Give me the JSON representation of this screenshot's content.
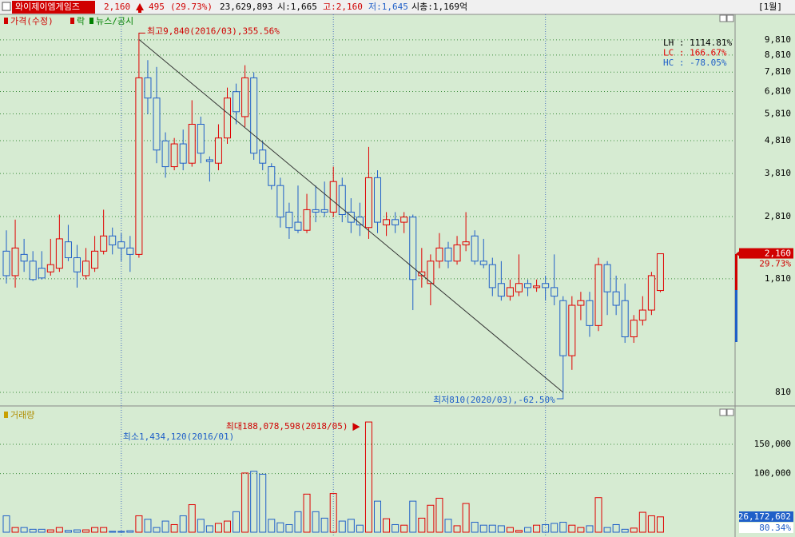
{
  "header": {
    "name": "와이제이엠게임즈",
    "price": "2,160",
    "change": "495",
    "change_rate": "(29.73%)",
    "volume": "23,629,893",
    "open": "시:1,665",
    "high": "고:2,160",
    "low": "저:1,645",
    "cap": "시총:1,169억",
    "period": "[1월]"
  },
  "chart_data": [
    {
      "type": "candlestick",
      "title": "가격(수정)",
      "labels": [
        "락",
        "뉴스/공시"
      ],
      "open": [
        2200,
        1850,
        2150,
        2050,
        1950,
        1900,
        1950,
        2350,
        2100,
        1850,
        1950,
        2200,
        2450,
        2350,
        2250,
        2150,
        7500,
        6500,
        4800,
        4000,
        4700,
        4100,
        5400,
        4200,
        4100,
        4900,
        6800,
        5700,
        7500,
        4500,
        4000,
        3500,
        2900,
        2700,
        2550,
        2950,
        2950,
        2900,
        3500,
        2900,
        2800,
        2600,
        3700,
        2650,
        2750,
        2700,
        2800,
        1850,
        1750,
        2050,
        2250,
        2050,
        2300,
        2450,
        2050,
        2000,
        1750,
        1600,
        1650,
        1750,
        1700,
        1750,
        1700,
        1550,
        1050,
        1500,
        1550,
        1300,
        2000,
        1650,
        1550,
        1200,
        1350,
        1450,
        1665
      ],
      "high": [
        2550,
        2750,
        2400,
        2200,
        2200,
        2400,
        2850,
        2650,
        2300,
        2250,
        2450,
        2950,
        2600,
        2500,
        2450,
        9840,
        8500,
        8100,
        5100,
        4900,
        5200,
        6400,
        5700,
        4300,
        5400,
        7000,
        7200,
        8200,
        7800,
        4800,
        4100,
        3700,
        3100,
        3500,
        3300,
        3500,
        3600,
        4000,
        3700,
        3200,
        3100,
        4600,
        3900,
        2900,
        2900,
        2900,
        2850,
        2250,
        2150,
        2500,
        2350,
        2450,
        2900,
        2550,
        2400,
        2100,
        2050,
        1800,
        2150,
        1800,
        1800,
        1850,
        2150,
        1600,
        1600,
        1650,
        1650,
        2100,
        2050,
        1850,
        1750,
        1400,
        1600,
        1900,
        2160
      ],
      "low": [
        1750,
        1700,
        1900,
        1780,
        1800,
        1850,
        1900,
        2050,
        1700,
        1800,
        1900,
        2150,
        2150,
        2050,
        1900,
        2100,
        5800,
        4100,
        3700,
        3900,
        3900,
        4000,
        4100,
        3600,
        3900,
        4700,
        5400,
        5300,
        4200,
        3900,
        3400,
        2600,
        2400,
        2500,
        2500,
        2700,
        2800,
        2800,
        2700,
        2500,
        2450,
        2400,
        2500,
        2450,
        2500,
        2500,
        1450,
        1700,
        1500,
        1950,
        1950,
        2000,
        2200,
        2000,
        1950,
        1600,
        1550,
        1550,
        1600,
        1600,
        1650,
        1550,
        1500,
        810,
        950,
        1350,
        1200,
        1250,
        1400,
        1400,
        1150,
        1150,
        1300,
        1400,
        1645
      ],
      "close": [
        1850,
        2250,
        2050,
        1800,
        1820,
        2000,
        2400,
        2100,
        1900,
        2050,
        2200,
        2450,
        2300,
        2250,
        2150,
        7500,
        6500,
        4500,
        4000,
        4700,
        4100,
        5400,
        4400,
        4150,
        4900,
        6500,
        5900,
        7500,
        4400,
        4100,
        3500,
        2800,
        2600,
        2550,
        2950,
        2900,
        2900,
        3600,
        2850,
        2700,
        2650,
        3700,
        2700,
        2750,
        2650,
        2800,
        1800,
        1900,
        2050,
        2250,
        2050,
        2300,
        2350,
        2050,
        2000,
        1700,
        1600,
        1700,
        1750,
        1700,
        1720,
        1700,
        1600,
        1050,
        1500,
        1550,
        1300,
        2000,
        1650,
        1500,
        1200,
        1350,
        1450,
        1850,
        2160
      ],
      "up_color": "#e00000",
      "down_color": "#1f5fc8",
      "log": true,
      "grid": true,
      "ylim": [
        740,
        11750
      ],
      "yticks": [
        810,
        {
          "value": 1810,
          "label": "1,810"
        },
        {
          "value": 2810,
          "label": "2,810"
        },
        {
          "value": 3810,
          "label": "3,810"
        },
        {
          "value": 4810,
          "label": "4,810"
        },
        {
          "value": 5810,
          "label": "5,810"
        },
        {
          "value": 6810,
          "label": "6,810"
        },
        {
          "value": 7810,
          "label": "7,810"
        },
        {
          "value": 8810,
          "label": "8,810"
        },
        {
          "value": 9810,
          "label": "9,810"
        }
      ],
      "high_text": "최고9,840(2016/03),355.56%",
      "low_text": "최저810(2020/03),-62.50%",
      "stats": [
        {
          "text": "LH : 1114.81%",
          "color": "#000000"
        },
        {
          "text": "LC :  166.67%",
          "color": "#e00000"
        },
        {
          "text": "HC :  -78.05%",
          "color": "#1f5fc8"
        }
      ],
      "current_label": "2,160",
      "current_change": "29.73%"
    },
    {
      "type": "bar",
      "title": "거래량",
      "values": [
        28000,
        8000,
        8000,
        5000,
        5000,
        4000,
        8000,
        3000,
        4000,
        4000,
        8000,
        8000,
        1500,
        1434.12,
        2500,
        28000,
        22000,
        8000,
        19000,
        13000,
        28000,
        47000,
        22000,
        11000,
        15000,
        19000,
        35000,
        101000,
        104000,
        99000,
        22000,
        16000,
        13000,
        35000,
        65000,
        35000,
        24000,
        66000,
        19000,
        22000,
        12000,
        188078.598,
        53000,
        23000,
        13000,
        12000,
        53000,
        24000,
        46000,
        58000,
        22000,
        11000,
        49000,
        17000,
        12000,
        12000,
        11000,
        8000,
        3000,
        8000,
        12000,
        13000,
        15000,
        17000,
        12000,
        8000,
        11000,
        59000,
        8000,
        13000,
        5000,
        7000,
        34000,
        28000,
        26172.602
      ],
      "ylim": [
        0,
        210000
      ],
      "yticks": [
        {
          "value": 100000,
          "label": "100,000"
        },
        {
          "value": 150000,
          "label": "150,000"
        }
      ],
      "max_text": "최대188,078,598(2018/05)",
      "min_text": "최소1,434,120(2016/01)",
      "current_label": "26,172,602",
      "current_change": "80.34%"
    }
  ]
}
